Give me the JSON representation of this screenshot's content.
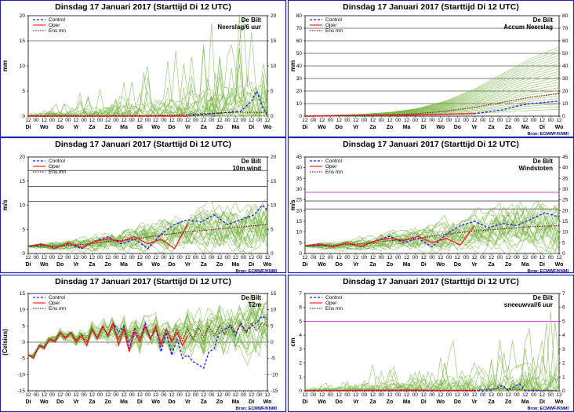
{
  "x_axis": {
    "hour_labels": [
      "12",
      "00",
      "12",
      "00",
      "12",
      "00",
      "12",
      "00",
      "12",
      "00",
      "12",
      "00",
      "12",
      "00",
      "12",
      "00",
      "12",
      "00",
      "12",
      "00",
      "12",
      "00",
      "12",
      "00",
      "12",
      "00",
      "12",
      "00",
      "12",
      "00",
      "12"
    ],
    "day_labels": [
      "Di",
      "Wo",
      "Do",
      "Vr",
      "Za",
      "Zo",
      "Ma",
      "Di",
      "Wo",
      "Do",
      "Vr",
      "Za",
      "Zo",
      "Ma",
      "Di",
      "Wo"
    ]
  },
  "legend": {
    "control": "Control",
    "oper": "Oper",
    "ensmn": "Ens mn",
    "colors": {
      "control": "#1a1aff",
      "oper": "#ff2020",
      "ensmn": "#7a1a1a",
      "members": "#7ab648"
    }
  },
  "chart_data": [
    {
      "type": "line",
      "title": "Dinsdag 17 Januari 2017   (Starttijd Di 12 UTC)",
      "location": "De Bilt",
      "variable": "Neerslag/6 uur",
      "ylabel": "mm",
      "ylim": [
        0,
        20
      ],
      "yticks": [
        0,
        5,
        10,
        15,
        20
      ],
      "right_yticks": [
        0,
        5,
        10,
        15,
        20
      ],
      "ref_lines": [
        15
      ],
      "ref_color": "#000000",
      "legend_labels": [
        "Control",
        "Oper",
        "Ens mn"
      ],
      "source": "",
      "series": [
        {
          "name": "Control",
          "x": [
            0,
            30,
            60,
            70,
            80,
            84,
            86,
            88,
            90
          ],
          "y": [
            0,
            0,
            0,
            0.5,
            1,
            3,
            5,
            2,
            0
          ]
        },
        {
          "name": "Oper",
          "x": [
            0,
            40,
            60
          ],
          "y": [
            0,
            0,
            0
          ]
        },
        {
          "name": "Ens mn",
          "x": [
            0,
            30,
            50,
            60,
            70,
            80,
            90
          ],
          "y": [
            0,
            0,
            0.1,
            0.3,
            0.6,
            0.8,
            0.7
          ]
        }
      ]
    },
    {
      "type": "line",
      "title": "Dinsdag 17 Januari 2017   (Starttijd Di 12 UTC)",
      "location": "De Bilt",
      "variable": "Accum Neerslag",
      "ylabel": "mm",
      "ylim": [
        0,
        80
      ],
      "yticks": [
        0,
        10,
        20,
        30,
        40,
        50,
        60,
        70,
        80
      ],
      "right_yticks": [
        0,
        10,
        20,
        30,
        40,
        50,
        60,
        70,
        80
      ],
      "ref_lines": [
        10,
        20,
        30,
        40,
        50,
        60,
        70
      ],
      "ref_color": "#000000",
      "legend_labels": [
        "Control",
        "Oper",
        "Ens mn"
      ],
      "source": "Bron: ECMWF/KNMI",
      "series": [
        {
          "name": "Control",
          "x": [
            0,
            20,
            40,
            60,
            70,
            75,
            80,
            85,
            90
          ],
          "y": [
            0,
            0.5,
            1,
            2,
            5,
            8,
            10,
            11,
            12
          ]
        },
        {
          "name": "Oper",
          "x": [
            0,
            20,
            40,
            60
          ],
          "y": [
            0,
            0.5,
            1,
            2
          ]
        },
        {
          "name": "Ens mn",
          "x": [
            0,
            20,
            30,
            40,
            50,
            60,
            70,
            80,
            90
          ],
          "y": [
            0,
            0.5,
            1,
            2,
            4,
            7,
            11,
            15,
            18
          ]
        }
      ]
    },
    {
      "type": "line",
      "title": "Dinsdag 17 Januari 2017   (Starttijd Di 12 UTC)",
      "location": "De Bilt",
      "variable": "10m wind",
      "ylabel": "m/s",
      "ylim": [
        0,
        20
      ],
      "yticks": [
        0,
        5,
        10,
        15,
        20
      ],
      "right_yticks": [
        0,
        5,
        10,
        15,
        20
      ],
      "ref_lines": [
        10.8,
        13.9,
        17.2
      ],
      "ref_color": "#000000",
      "legend_labels": [
        "Control",
        "Oper",
        "Ens mn"
      ],
      "source": "Bron: ECMWF/KNMI",
      "series": [
        {
          "name": "Control",
          "x": [
            0,
            5,
            10,
            15,
            20,
            25,
            30,
            35,
            40,
            45,
            50,
            55,
            60,
            65,
            70,
            75,
            80,
            85,
            88,
            90
          ],
          "y": [
            1.5,
            1.8,
            1.2,
            2,
            1,
            2.5,
            3.5,
            2,
            3,
            1,
            4,
            6,
            7,
            6.5,
            8,
            6,
            7,
            8,
            10,
            9
          ]
        },
        {
          "name": "Oper",
          "x": [
            0,
            5,
            10,
            15,
            20,
            25,
            30,
            35,
            40,
            45,
            50,
            55,
            60
          ],
          "y": [
            1.5,
            2,
            1,
            2.2,
            1.2,
            2.5,
            3,
            2.5,
            3.5,
            2,
            3,
            1,
            6
          ]
        },
        {
          "name": "Ens mn",
          "x": [
            0,
            10,
            20,
            30,
            40,
            50,
            60,
            70,
            80,
            90
          ],
          "y": [
            1.5,
            1.6,
            1.8,
            2.5,
            3,
            3.8,
            4.5,
            5,
            5.5,
            6
          ]
        }
      ]
    },
    {
      "type": "line",
      "title": "Dinsdag 17 Januari 2017   (Starttijd Di 12 UTC)",
      "location": "De Bilt",
      "variable": "Windstoten",
      "ylabel": "m/s",
      "ylim": [
        0,
        45
      ],
      "yticks": [
        0,
        5,
        10,
        15,
        20,
        25,
        30,
        35,
        40,
        45
      ],
      "right_yticks": [
        0,
        5,
        10,
        15,
        20,
        25,
        30,
        35,
        40,
        45
      ],
      "ref_lines": [
        20.8,
        24.5
      ],
      "ref_color": "#000000",
      "extra_ref_lines": [
        28.5
      ],
      "extra_ref_color": "#cc33cc",
      "legend_labels": [
        "Control",
        "Oper",
        "Ens mn"
      ],
      "source": "Bron: ECMWF/KNMI",
      "series": [
        {
          "name": "Control",
          "x": [
            0,
            5,
            10,
            15,
            20,
            25,
            30,
            35,
            40,
            45,
            50,
            55,
            60,
            65,
            70,
            75,
            80,
            85,
            90
          ],
          "y": [
            3.5,
            4,
            3,
            5,
            3,
            6,
            8,
            5,
            7,
            3,
            9,
            13,
            15,
            12,
            14,
            13,
            16,
            19,
            17
          ]
        },
        {
          "name": "Oper",
          "x": [
            0,
            5,
            10,
            15,
            20,
            25,
            30,
            35,
            40,
            45,
            50,
            55,
            60
          ],
          "y": [
            3.5,
            4.5,
            3,
            5,
            3.2,
            6,
            7,
            6,
            8,
            5,
            7,
            4,
            13
          ]
        },
        {
          "name": "Ens mn",
          "x": [
            0,
            10,
            20,
            30,
            40,
            50,
            60,
            70,
            80,
            90
          ],
          "y": [
            3.5,
            3.8,
            4.5,
            6,
            7,
            9,
            10.5,
            11.5,
            12.5,
            13
          ]
        }
      ]
    },
    {
      "type": "line",
      "title": "Dinsdag 17 Januari 2017   (Starttijd Di 12 UTC)",
      "location": "De Bilt",
      "variable": "T2m",
      "ylabel": "(Celsius)",
      "ylim": [
        -15,
        15
      ],
      "yticks": [
        -15,
        -10,
        -5,
        0,
        5,
        10,
        15
      ],
      "right_yticks": [
        -15,
        -10,
        -5,
        0,
        5,
        10,
        15
      ],
      "ref_lines": [
        0
      ],
      "ref_color": "#000000",
      "legend_labels": [
        "Control",
        "Oper",
        "Ens mn"
      ],
      "source": "Bron: ECMWF/KNMI",
      "series": [
        {
          "name": "Control",
          "x": [
            0,
            2,
            4,
            6,
            8,
            10,
            12,
            14,
            16,
            18,
            20,
            22,
            24,
            26,
            28,
            30,
            32,
            34,
            36,
            38,
            40,
            42,
            44,
            46,
            48,
            50,
            52,
            54,
            56,
            58,
            60,
            62,
            64,
            66,
            68,
            70,
            72,
            74,
            76,
            78,
            80,
            82,
            84,
            86,
            88,
            90
          ],
          "y": [
            -4,
            -5,
            -1,
            -2,
            1,
            0,
            3,
            1,
            3,
            0,
            2,
            -1,
            4,
            1,
            5,
            2,
            6,
            3,
            5,
            -2,
            4,
            0,
            6,
            1,
            5,
            -3,
            3,
            -4,
            1,
            -5,
            -4,
            -6,
            -7,
            -8,
            -3,
            -2,
            3,
            4,
            5,
            2,
            6,
            3,
            5,
            6,
            8,
            7
          ]
        },
        {
          "name": "Oper",
          "x": [
            0,
            2,
            4,
            6,
            8,
            10,
            12,
            14,
            16,
            18,
            20,
            22,
            24,
            26,
            28,
            30,
            32,
            34,
            36,
            38,
            40,
            42,
            44,
            46,
            48,
            50,
            52,
            54,
            56,
            58,
            60
          ],
          "y": [
            -4,
            -5,
            -1,
            -2,
            1,
            0,
            3,
            1,
            3,
            0,
            2,
            -1,
            4,
            1,
            5,
            2,
            6,
            -1,
            4,
            -3,
            3,
            0,
            5,
            1,
            5,
            -1,
            4,
            0,
            3,
            -1,
            2
          ]
        },
        {
          "name": "Ens mn",
          "x": [
            0,
            2,
            4,
            6,
            8,
            10,
            12,
            14,
            16,
            18,
            20,
            22,
            24,
            26,
            28,
            30,
            32,
            34,
            36,
            38,
            40,
            42,
            44,
            46,
            48,
            50,
            52,
            54,
            56,
            58,
            60,
            62,
            64,
            66,
            68,
            70,
            72,
            74,
            76,
            78,
            80,
            82,
            84,
            86,
            88,
            90
          ],
          "y": [
            -4,
            -4.5,
            -1,
            -1.5,
            1,
            0.5,
            3,
            1.5,
            3,
            0.5,
            2.5,
            0,
            4,
            1.5,
            4.5,
            2,
            5,
            1,
            4.5,
            0,
            4.5,
            1,
            4.5,
            1,
            4,
            0,
            4,
            0.5,
            4,
            0.5,
            4,
            1,
            4.5,
            1.5,
            5,
            2,
            5,
            2.5,
            5.5,
            3,
            5.5,
            3,
            6,
            3.5,
            6,
            5
          ]
        }
      ]
    },
    {
      "type": "line",
      "title": "Dinsdag 17 Januari 2017   (Starttijd Di 12 UTC)",
      "location": "De Bilt",
      "variable": "sneeuwval/6 uur",
      "ylabel": "cm",
      "ylim": [
        0,
        7
      ],
      "yticks": [
        0,
        1,
        2,
        3,
        4,
        5,
        6,
        7
      ],
      "right_yticks": [
        0,
        1,
        2,
        3,
        4,
        5,
        6,
        7
      ],
      "ref_lines": [],
      "ref_color": "#000000",
      "extra_ref_lines": [
        5
      ],
      "extra_ref_color": "#cc33cc",
      "legend_labels": [
        "Control",
        "Oper",
        "Ens mn"
      ],
      "source": "Bron: ECMWF/KNMI",
      "series": [
        {
          "name": "Control",
          "x": [
            0,
            60,
            65,
            68,
            70,
            72,
            74,
            76,
            78,
            90
          ],
          "y": [
            0,
            0,
            0,
            0.2,
            0.4,
            0,
            0.3,
            0.5,
            0,
            0
          ]
        },
        {
          "name": "Oper",
          "x": [
            0,
            20,
            40,
            60
          ],
          "y": [
            0,
            0.03,
            0.05,
            0
          ]
        },
        {
          "name": "Ens mn",
          "x": [
            0,
            50,
            60,
            65,
            70,
            75,
            80,
            90
          ],
          "y": [
            0,
            0,
            0.05,
            0.1,
            0.15,
            0.1,
            0.05,
            0
          ]
        }
      ]
    }
  ]
}
